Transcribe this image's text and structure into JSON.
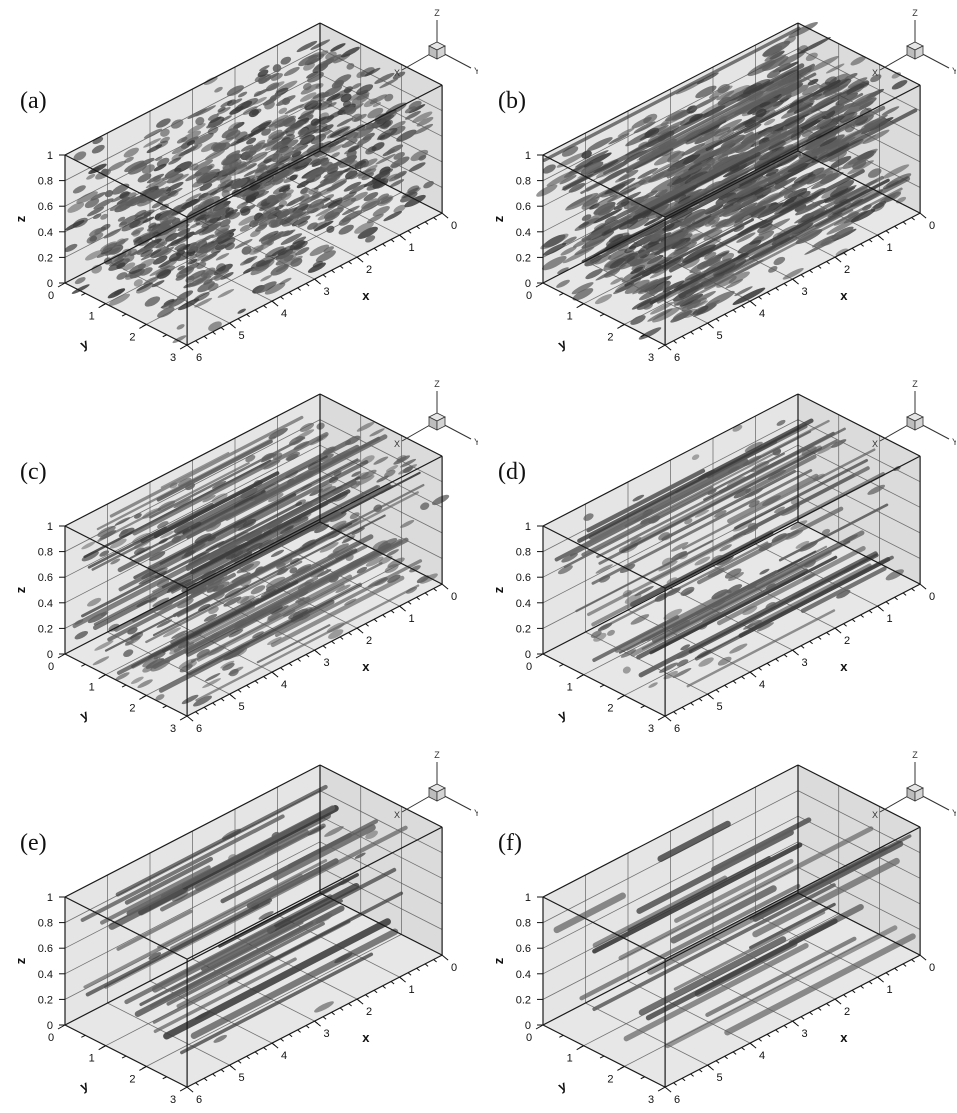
{
  "figure": {
    "panels": [
      {
        "label": "(a)",
        "structure": "dense-isotropic"
      },
      {
        "label": "(b)",
        "structure": "dense-streaky"
      },
      {
        "label": "(c)",
        "structure": "streaks-forming"
      },
      {
        "label": "(d)",
        "structure": "streaks"
      },
      {
        "label": "(e)",
        "structure": "long-streaks"
      },
      {
        "label": "(f)",
        "structure": "sparse-long-streaks"
      }
    ],
    "axes": {
      "x_title": "x",
      "y_title": "y",
      "z_title": "z",
      "x_ticks": [
        "0",
        "1",
        "2",
        "3",
        "4",
        "5",
        "6"
      ],
      "y_ticks": [
        "0",
        "1",
        "2",
        "3"
      ],
      "z_ticks": [
        "0",
        "0.2",
        "0.4",
        "0.6",
        "0.8",
        "1"
      ]
    },
    "triad": {
      "z": "Z",
      "x": "X",
      "y": "Y"
    },
    "colors": {
      "box_fill": "#cfcfcf",
      "box_line": "#1a1a1a",
      "grid": "#555555",
      "isosurface": "#5e5e5e",
      "isosurface_dark": "#3a3a3a"
    }
  }
}
